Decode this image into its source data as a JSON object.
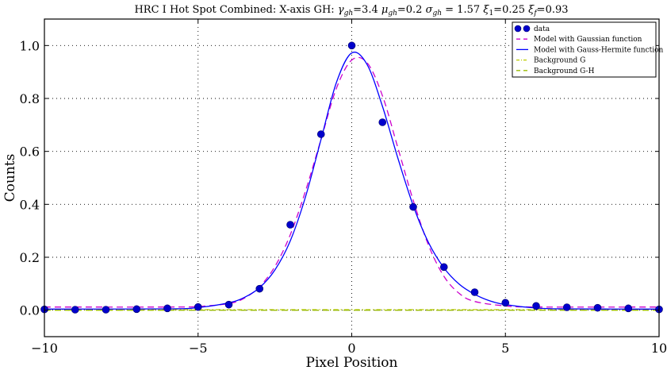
{
  "chart_data": {
    "type": "scatter",
    "title": "HRC I Hot Spot Combined: X-axis  GH: γgh=3.4 μgh=0.2 σgh = 1.57 ξ1=0.25  ξf=0.93",
    "title_parts": [
      {
        "t": "HRC I Hot Spot Combined: X-axis  GH: "
      },
      {
        "t": "γ",
        "it": true
      },
      {
        "t": "gh",
        "sub": true,
        "it": true
      },
      {
        "t": "=3.4 "
      },
      {
        "t": "μ",
        "it": true
      },
      {
        "t": "gh",
        "sub": true,
        "it": true
      },
      {
        "t": "=0.2 "
      },
      {
        "t": "σ",
        "it": true
      },
      {
        "t": "gh",
        "sub": true,
        "it": true
      },
      {
        "t": " = 1.57 "
      },
      {
        "t": "ξ",
        "it": true
      },
      {
        "t": "1",
        "sub": true
      },
      {
        "t": "=0.25  "
      },
      {
        "t": "ξ",
        "it": true
      },
      {
        "t": "f",
        "sub": true,
        "it": true
      },
      {
        "t": "=0.93"
      }
    ],
    "xlabel": "Pixel Position",
    "ylabel": "Counts",
    "xlim": [
      -10,
      10
    ],
    "ylim": [
      -0.1,
      1.1
    ],
    "xticks": [
      -10,
      -5,
      0,
      5,
      10
    ],
    "xtick_labels": [
      "−10",
      "−5",
      "0",
      "5",
      "10"
    ],
    "yticks": [
      0.0,
      0.2,
      0.4,
      0.6,
      0.8,
      1.0
    ],
    "ytick_labels": [
      "0.0",
      "0.2",
      "0.4",
      "0.6",
      "0.8",
      "1.0"
    ],
    "grid": true,
    "grid_style": "dotted",
    "legend_position": "top-right",
    "legend": [
      {
        "label": "data",
        "style": "markers",
        "color": "#0000cc"
      },
      {
        "label": "Model with Gaussian function",
        "style": "dashed",
        "color": "#cc00cc"
      },
      {
        "label": "Model with Gauss-Hermite function",
        "style": "solid",
        "color": "#0000ff"
      },
      {
        "label": "Background G",
        "style": "dashdot",
        "color": "#bbcc00"
      },
      {
        "label": "Background G-H",
        "style": "dashed",
        "color": "#99bb00"
      }
    ],
    "series": [
      {
        "name": "data",
        "kind": "scatter",
        "color": "#0000cc",
        "x": [
          -10,
          -9,
          -8,
          -7,
          -6,
          -5,
          -4,
          -3,
          -2,
          -1,
          0,
          1,
          2,
          3,
          4,
          5,
          6,
          7,
          8,
          9,
          10
        ],
        "y": [
          0.003,
          0.002,
          0.002,
          0.004,
          0.007,
          0.012,
          0.021,
          0.081,
          0.323,
          0.665,
          1.0,
          0.71,
          0.39,
          0.163,
          0.068,
          0.028,
          0.016,
          0.011,
          0.009,
          0.007,
          0.003
        ]
      },
      {
        "name": "Model with Gaussian function",
        "kind": "line",
        "style": "dashed",
        "color": "#cc00cc",
        "x": [
          -10,
          -6,
          -5,
          -4,
          -3.5,
          -3,
          -2.5,
          -2,
          -1.5,
          -1,
          -0.5,
          0,
          0.5,
          1,
          1.5,
          2,
          2.5,
          3,
          3.5,
          4,
          5,
          6,
          10
        ],
        "y": [
          0.012,
          0.012,
          0.014,
          0.025,
          0.045,
          0.089,
          0.165,
          0.285,
          0.452,
          0.645,
          0.838,
          0.945,
          0.935,
          0.81,
          0.614,
          0.415,
          0.245,
          0.128,
          0.063,
          0.033,
          0.016,
          0.012,
          0.012
        ]
      },
      {
        "name": "Model with Gauss-Hermite function",
        "kind": "line",
        "style": "solid",
        "color": "#0000ff",
        "x": [
          -10,
          -6,
          -5,
          -4,
          -3.5,
          -3,
          -2.5,
          -2,
          -1.5,
          -1,
          -0.5,
          0,
          0.5,
          1,
          1.5,
          2,
          2.5,
          3,
          3.5,
          4,
          4.5,
          5,
          6,
          7,
          10
        ],
        "y": [
          0.004,
          0.005,
          0.01,
          0.028,
          0.048,
          0.085,
          0.152,
          0.262,
          0.43,
          0.645,
          0.86,
          0.972,
          0.928,
          0.77,
          0.575,
          0.395,
          0.255,
          0.16,
          0.098,
          0.06,
          0.035,
          0.021,
          0.008,
          0.005,
          0.004
        ]
      },
      {
        "name": "Background G",
        "kind": "line",
        "style": "dashdot",
        "color": "#bbcc00",
        "x": [
          -10,
          10
        ],
        "y": [
          0.002,
          0.002
        ]
      },
      {
        "name": "Background G-H",
        "kind": "line",
        "style": "dashed",
        "color": "#99bb00",
        "x": [
          -10,
          10
        ],
        "y": [
          0.0,
          0.0
        ]
      }
    ]
  }
}
